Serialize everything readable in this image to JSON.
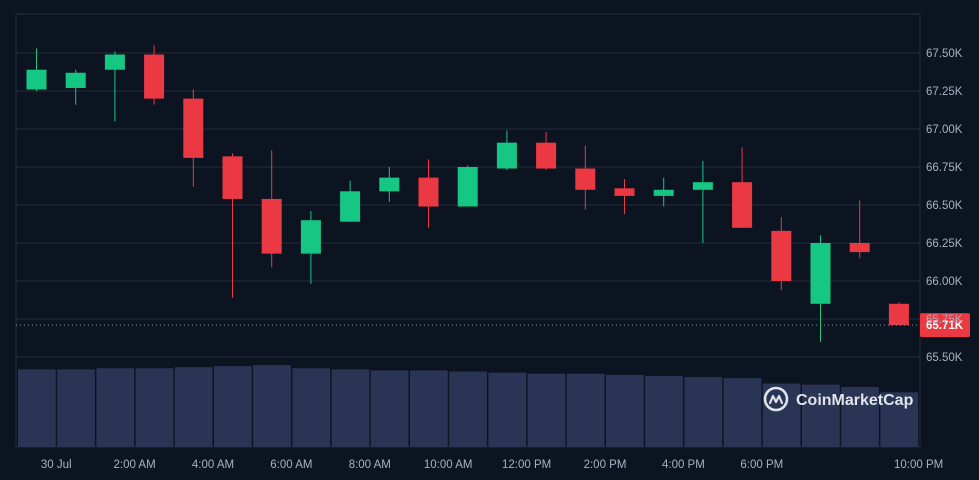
{
  "colors": {
    "background": "#0d1421",
    "grid": "#222b3a",
    "axis_text": "#a7b1c2",
    "up": "#16c784",
    "down": "#ea3943",
    "volume": "#2a3556",
    "price_tag": "#ea3943",
    "last_price_line": "#8a93a6"
  },
  "watermark": {
    "text": "CoinMarketCap",
    "icon": "coinmarketcap-logo-icon"
  },
  "chart_data": {
    "type": "candlestick",
    "y_axis": {
      "ticks": [
        65500,
        65750,
        66000,
        66250,
        66500,
        66750,
        67000,
        67250,
        67500
      ],
      "tick_labels": [
        "65.50K",
        "65.75K",
        "66.00K",
        "66.25K",
        "66.50K",
        "66.75K",
        "67.00K",
        "67.25K",
        "67.50K"
      ],
      "range": [
        65400,
        67650
      ]
    },
    "x_axis": {
      "tick_labels": [
        "30 Jul",
        "2:00 AM",
        "4:00 AM",
        "6:00 AM",
        "8:00 AM",
        "10:00 AM",
        "12:00 PM",
        "2:00 PM",
        "4:00 PM",
        "6:00 PM",
        "10:00 PM"
      ],
      "tick_slots": [
        1,
        3,
        5,
        7,
        9,
        11,
        13,
        15,
        17,
        19,
        23
      ]
    },
    "grid": true,
    "last_price": {
      "value": 65710,
      "label": "65.71K"
    },
    "candles": [
      {
        "o": 67260,
        "h": 67530,
        "l": 67250,
        "c": 67390
      },
      {
        "o": 67270,
        "h": 67390,
        "l": 67160,
        "c": 67370
      },
      {
        "o": 67390,
        "h": 67510,
        "l": 67050,
        "c": 67490
      },
      {
        "o": 67490,
        "h": 67550,
        "l": 67160,
        "c": 67200
      },
      {
        "o": 67200,
        "h": 67260,
        "l": 66620,
        "c": 66810
      },
      {
        "o": 66820,
        "h": 66840,
        "l": 65890,
        "c": 66540
      },
      {
        "o": 66540,
        "h": 66860,
        "l": 66090,
        "c": 66180
      },
      {
        "o": 66180,
        "h": 66460,
        "l": 65980,
        "c": 66400
      },
      {
        "o": 66390,
        "h": 66660,
        "l": 66390,
        "c": 66590
      },
      {
        "o": 66590,
        "h": 66750,
        "l": 66520,
        "c": 66680
      },
      {
        "o": 66680,
        "h": 66800,
        "l": 66350,
        "c": 66490
      },
      {
        "o": 66490,
        "h": 66760,
        "l": 66490,
        "c": 66750
      },
      {
        "o": 66740,
        "h": 66990,
        "l": 66730,
        "c": 66910
      },
      {
        "o": 66910,
        "h": 66980,
        "l": 66730,
        "c": 66740
      },
      {
        "o": 66740,
        "h": 66890,
        "l": 66470,
        "c": 66600
      },
      {
        "o": 66610,
        "h": 66670,
        "l": 66440,
        "c": 66560
      },
      {
        "o": 66560,
        "h": 66680,
        "l": 66490,
        "c": 66600
      },
      {
        "o": 66600,
        "h": 66790,
        "l": 66250,
        "c": 66650
      },
      {
        "o": 66650,
        "h": 66880,
        "l": 66350,
        "c": 66350
      },
      {
        "o": 66330,
        "h": 66420,
        "l": 65940,
        "c": 66000
      },
      {
        "o": 65850,
        "h": 66300,
        "l": 65600,
        "c": 66250
      },
      {
        "o": 66250,
        "h": 66530,
        "l": 66150,
        "c": 66190
      },
      {
        "o": 65850,
        "h": 65860,
        "l": 65710,
        "c": 65710
      }
    ],
    "volume": [
      0.71,
      0.71,
      0.72,
      0.72,
      0.73,
      0.74,
      0.75,
      0.72,
      0.71,
      0.7,
      0.7,
      0.69,
      0.68,
      0.67,
      0.67,
      0.66,
      0.65,
      0.64,
      0.63,
      0.58,
      0.57,
      0.55,
      0.5
    ]
  }
}
